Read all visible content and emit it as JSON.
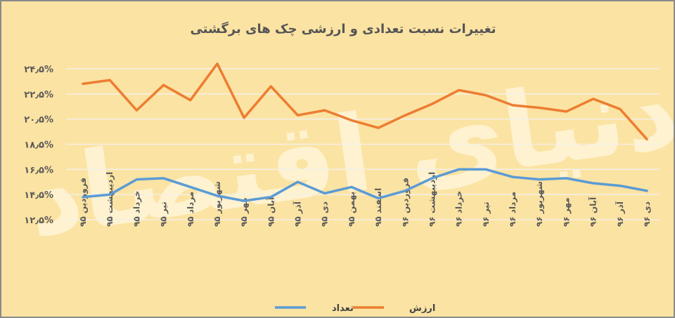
{
  "chart_data": {
    "type": "line",
    "title": "تغییرات نسبت تعدادی و ارزشی چک های برگشتی",
    "categories": [
      "فروردین ۹۵",
      "اردیبهشت ۹۵",
      "خرداد ۹۵",
      "تیر ۹۵",
      "مرداد ۹۵",
      "شهریور ۹۵",
      "مهر ۹۵",
      "آبان ۹۵",
      "آذر ۹۵",
      "دی ۹۵",
      "بهمن ۹۵",
      "اسفند ۹۵",
      "فروردین ۹۶",
      "اردیبهشت ۹۶",
      "خرداد ۹۶",
      "تیر ۹۶",
      "مرداد ۹۶",
      "شهریور ۹۶",
      "مهر ۹۶",
      "آبان ۹۶",
      "آذر ۹۶",
      "دی ۹۶"
    ],
    "series": [
      {
        "name": "تعداد",
        "color": "#5b9bd5",
        "values": [
          14.3,
          14.5,
          15.7,
          15.8,
          15.1,
          14.4,
          14.0,
          14.3,
          15.5,
          14.6,
          15.1,
          14.2,
          14.8,
          15.8,
          16.5,
          16.5,
          15.9,
          15.7,
          15.8,
          15.4,
          15.2,
          14.8
        ]
      },
      {
        "name": "ارزش",
        "color": "#ed7d31",
        "values": [
          23.3,
          23.6,
          21.2,
          23.2,
          22.0,
          24.9,
          20.6,
          23.1,
          20.8,
          21.2,
          20.4,
          19.8,
          20.8,
          21.7,
          22.8,
          22.4,
          21.6,
          21.4,
          21.1,
          22.1,
          21.3,
          18.9
        ]
      }
    ],
    "ylim": [
      12.5,
      25.5
    ],
    "yticks": [
      "۱۲٫۵%",
      "۱۴٫۵%",
      "۱۶٫۵%",
      "۱۸٫۵%",
      "۲۰٫۵%",
      "۲۲٫۵%",
      "۲۴٫۵%"
    ],
    "ytick_values": [
      12.5,
      14.5,
      16.5,
      18.5,
      20.5,
      22.5,
      24.5
    ],
    "grid": true,
    "legend_position": "bottom-center",
    "watermark": "دنیای اقتصاد",
    "background": "#fbe3a3",
    "gridline_color": "#f4f0e8"
  }
}
